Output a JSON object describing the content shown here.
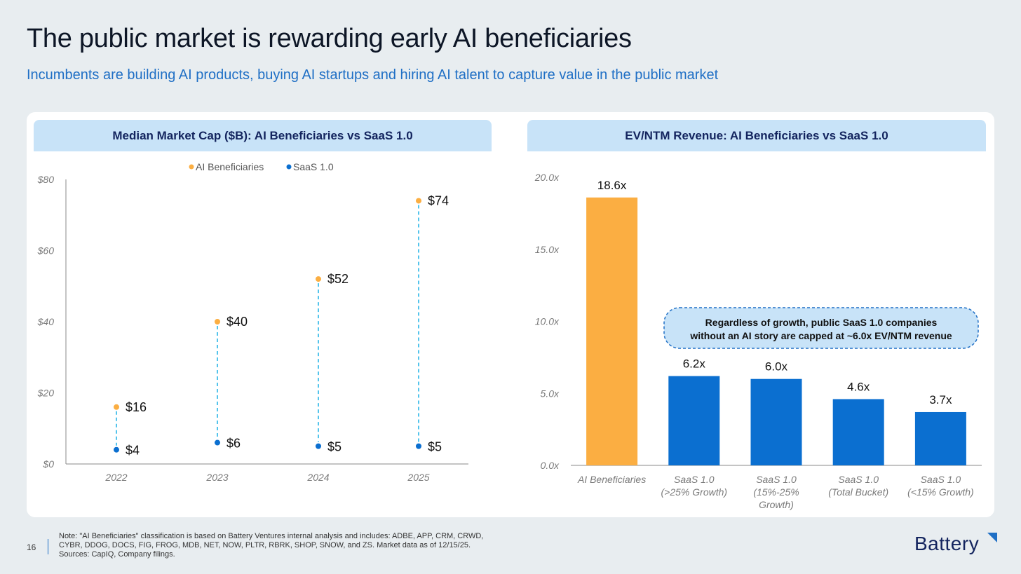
{
  "page": {
    "title": "The public market is rewarding early AI beneficiaries",
    "subtitle": "Incumbents are building AI products, buying AI startups and hiring AI talent to capture value in the public market",
    "page_number": "16",
    "note_lines": [
      "Note: \"AI Beneficiaries\" classification is based on Battery Ventures internal analysis and includes: ADBE, APP, CRM, CRWD,",
      "CYBR, DDOG, DOCS, FIG, FROG, MDB, NET, NOW, PLTR, RBRK, SHOP, SNOW, and ZS. Market data as of 12/15/25.",
      "Sources: CapIQ, Company filings."
    ],
    "logo": "Battery"
  },
  "colors": {
    "ai": "#fbae42",
    "saas": "#0b6fd0",
    "connector": "#29b6e8",
    "axis": "#8a8a8a",
    "tick": "#7a7a7a",
    "label": "#111111"
  },
  "chart_data": [
    {
      "type": "scatter",
      "title": "Median Market Cap ($B): AI Beneficiaries vs SaaS 1.0",
      "categories": [
        "2022",
        "2023",
        "2024",
        "2025"
      ],
      "series": [
        {
          "name": "AI Beneficiaries",
          "values": [
            16,
            40,
            52,
            74
          ],
          "labels": [
            "$16",
            "$40",
            "$52",
            "$74"
          ]
        },
        {
          "name": "SaaS 1.0",
          "values": [
            4,
            6,
            5,
            5
          ],
          "labels": [
            "$4",
            "$6",
            "$5",
            "$5"
          ]
        }
      ],
      "y_ticks": [
        0,
        20,
        40,
        60,
        80
      ],
      "y_tick_labels": [
        "$0",
        "$20",
        "$40",
        "$60",
        "$80"
      ],
      "ylim": [
        0,
        80
      ],
      "legend": "top-center"
    },
    {
      "type": "bar",
      "title": "EV/NTM Revenue: AI Beneficiaries vs SaaS 1.0",
      "categories": [
        [
          "AI Beneficiaries"
        ],
        [
          "SaaS 1.0",
          "(>25% Growth)"
        ],
        [
          "SaaS 1.0",
          "(15%-25%",
          "Growth)"
        ],
        [
          "SaaS 1.0",
          "(Total Bucket)"
        ],
        [
          "SaaS 1.0",
          "(<15% Growth)"
        ]
      ],
      "values": [
        18.6,
        6.2,
        6.0,
        4.6,
        3.7
      ],
      "value_labels": [
        "18.6x",
        "6.2x",
        "6.0x",
        "4.6x",
        "3.7x"
      ],
      "y_ticks": [
        0,
        5,
        10,
        15,
        20
      ],
      "y_tick_labels": [
        "0.0x",
        "5.0x",
        "10.0x",
        "15.0x",
        "20.0x"
      ],
      "ylim": [
        0,
        20
      ],
      "annotation": [
        "Regardless of growth, public SaaS 1.0 companies",
        "without an AI story are capped at ~6.0x EV/NTM revenue"
      ]
    }
  ]
}
